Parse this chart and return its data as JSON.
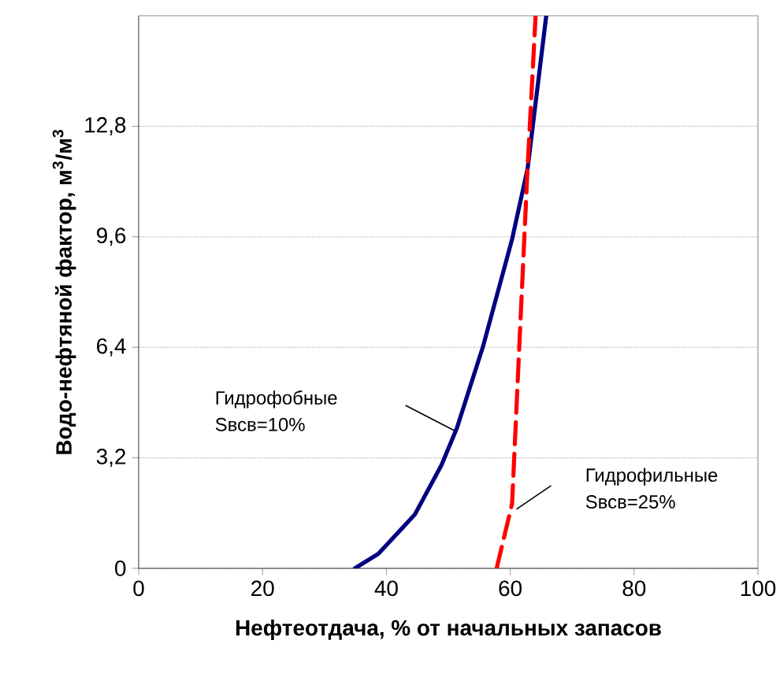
{
  "chart_data": {
    "type": "line",
    "xlabel": "Нефтеотдача, % от начальных запасов",
    "ylabel": "Водо-нефтяной фактор, м$^{3}$/м$^{3}$",
    "xlim": [
      0,
      100
    ],
    "ylim": [
      0,
      16
    ],
    "xticks": [
      0,
      20,
      40,
      60,
      80,
      100
    ],
    "yticks": [
      0,
      {
        "value": 3.2,
        "label": "3,2"
      },
      {
        "value": 6.4,
        "label": "6,4"
      },
      {
        "value": 9.6,
        "label": "9,6"
      },
      {
        "value": 12.8,
        "label": "12,8"
      }
    ],
    "grid": "y",
    "series": [
      {
        "color": "#000080",
        "line_style": "solid",
        "x": [
          34.9,
          38.7,
          44.6,
          48.9,
          51.4,
          55.6,
          60.3,
          62.8,
          65.8
        ],
        "values": [
          0,
          0.42,
          1.56,
          2.99,
          4.07,
          6.42,
          9.53,
          11.57,
          15.98
        ]
      },
      {
        "color": "#ff0000",
        "line_style": "dashed",
        "x": [
          57.8,
          60.3,
          61.5,
          62.8,
          64.1
        ],
        "values": [
          0,
          1.87,
          6.57,
          11.6,
          16
        ]
      }
    ],
    "annotations": [
      "Гидрофобные Sвсв=10%",
      "Гидрофильные Sвсв=25%"
    ]
  }
}
